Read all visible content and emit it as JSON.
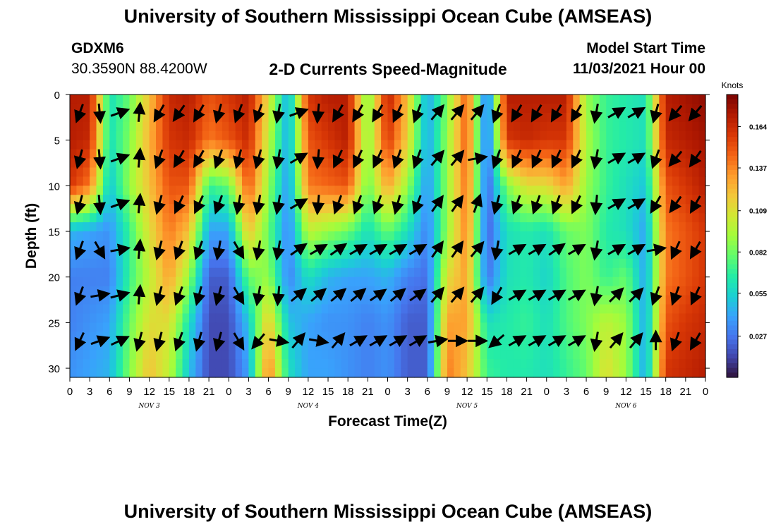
{
  "page": {
    "title": "University of Southern Mississippi Ocean Cube (AMSEAS)",
    "footer_title": "University of Southern Mississippi Ocean Cube (AMSEAS)"
  },
  "header": {
    "station": "GDXM6",
    "coords": "30.3590N  88.4200W",
    "product": "2-D Currents Speed-Magnitude",
    "start_label": "Model Start Time",
    "start_value": "11/03/2021 Hour 00"
  },
  "colors": {
    "palette": [
      "#30123b",
      "#4145ab",
      "#4675ed",
      "#39a2fc",
      "#1bcfd4",
      "#24eca6",
      "#61fc6c",
      "#a4fc3b",
      "#d1e834",
      "#f3c63a",
      "#fe9b2d",
      "#f36315",
      "#d93806",
      "#b11901",
      "#7a0402"
    ],
    "arrow": "#000000"
  },
  "chart_data": {
    "type": "heatmap",
    "title": "2-D Currents Speed-Magnitude",
    "xlabel": "Forecast Time(Z)",
    "ylabel": "Depth (ft)",
    "x_tick_labels": [
      "0",
      "3",
      "6",
      "9",
      "12",
      "15",
      "18",
      "21",
      "0",
      "3",
      "6",
      "9",
      "12",
      "15",
      "18",
      "21",
      "0",
      "3",
      "6",
      "9",
      "12",
      "15",
      "18",
      "21",
      "0",
      "3",
      "6",
      "9",
      "12",
      "15",
      "18",
      "21",
      "0"
    ],
    "x_hours": [
      0,
      96
    ],
    "day_labels": [
      {
        "label": "NOV 3",
        "hour": 12
      },
      {
        "label": "NOV 4",
        "hour": 36
      },
      {
        "label": "NOV 5",
        "hour": 60
      },
      {
        "label": "NOV 6",
        "hour": 84
      }
    ],
    "y_ticks": [
      0,
      5,
      10,
      15,
      20,
      25,
      30
    ],
    "y_range_ft": [
      0,
      31
    ],
    "colorbar": {
      "label": "Knots",
      "ticks": [
        "0.164",
        "0.137",
        "0.109",
        "0.082",
        "0.055",
        "0.027"
      ],
      "tick_values": [
        0.164,
        0.137,
        0.109,
        0.082,
        0.055,
        0.027
      ],
      "range": [
        0.0,
        0.185
      ]
    },
    "speed_grid": {
      "hours": [
        0,
        3,
        6,
        9,
        12,
        15,
        18,
        21,
        24,
        27,
        30,
        33,
        36,
        39,
        42,
        45,
        48,
        51,
        54,
        57,
        60,
        63,
        66,
        69,
        72,
        75,
        78,
        81,
        84,
        87,
        90,
        93,
        96
      ],
      "depths_ft": [
        0,
        5,
        10,
        15,
        20,
        25,
        30
      ],
      "rows": [
        [
          0.17,
          0.17,
          0.06,
          0.08,
          0.12,
          0.165,
          0.17,
          0.15,
          0.16,
          0.17,
          0.11,
          0.04,
          0.16,
          0.17,
          0.17,
          0.08,
          0.17,
          0.12,
          0.04,
          0.085,
          0.15,
          0.02,
          0.17,
          0.17,
          0.17,
          0.17,
          0.09,
          0.07,
          0.065,
          0.06,
          0.17,
          0.175,
          0.18
        ],
        [
          0.17,
          0.165,
          0.06,
          0.085,
          0.125,
          0.16,
          0.165,
          0.14,
          0.15,
          0.165,
          0.1,
          0.04,
          0.15,
          0.16,
          0.17,
          0.085,
          0.16,
          0.115,
          0.04,
          0.09,
          0.15,
          0.02,
          0.16,
          0.165,
          0.16,
          0.16,
          0.095,
          0.07,
          0.065,
          0.06,
          0.165,
          0.17,
          0.175
        ],
        [
          0.16,
          0.14,
          0.05,
          0.09,
          0.12,
          0.15,
          0.15,
          0.07,
          0.08,
          0.15,
          0.09,
          0.035,
          0.14,
          0.145,
          0.15,
          0.08,
          0.13,
          0.09,
          0.035,
          0.09,
          0.145,
          0.02,
          0.085,
          0.11,
          0.11,
          0.13,
          0.09,
          0.07,
          0.06,
          0.05,
          0.15,
          0.16,
          0.17
        ],
        [
          0.045,
          0.04,
          0.035,
          0.07,
          0.11,
          0.14,
          0.12,
          0.04,
          0.04,
          0.12,
          0.08,
          0.03,
          0.1,
          0.09,
          0.08,
          0.06,
          0.08,
          0.06,
          0.03,
          0.09,
          0.14,
          0.02,
          0.06,
          0.065,
          0.06,
          0.08,
          0.085,
          0.065,
          0.06,
          0.04,
          0.14,
          0.15,
          0.16
        ],
        [
          0.03,
          0.03,
          0.03,
          0.07,
          0.1,
          0.13,
          0.09,
          0.02,
          0.02,
          0.08,
          0.09,
          0.03,
          0.06,
          0.045,
          0.04,
          0.04,
          0.045,
          0.03,
          0.025,
          0.11,
          0.13,
          0.025,
          0.06,
          0.065,
          0.055,
          0.075,
          0.085,
          0.07,
          0.08,
          0.04,
          0.14,
          0.15,
          0.16
        ],
        [
          0.03,
          0.035,
          0.04,
          0.08,
          0.11,
          0.11,
          0.06,
          0.015,
          0.015,
          0.05,
          0.12,
          0.05,
          0.04,
          0.035,
          0.035,
          0.03,
          0.035,
          0.02,
          0.02,
          0.13,
          0.13,
          0.06,
          0.065,
          0.07,
          0.06,
          0.075,
          0.085,
          0.1,
          0.09,
          0.04,
          0.15,
          0.16,
          0.165
        ],
        [
          0.035,
          0.04,
          0.045,
          0.085,
          0.12,
          0.1,
          0.05,
          0.015,
          0.015,
          0.04,
          0.14,
          0.06,
          0.04,
          0.04,
          0.035,
          0.03,
          0.035,
          0.02,
          0.02,
          0.14,
          0.12,
          0.07,
          0.065,
          0.065,
          0.06,
          0.07,
          0.08,
          0.11,
          0.09,
          0.04,
          0.16,
          0.165,
          0.17
        ]
      ]
    },
    "vectors": {
      "note": "arrow direction in compass degrees (0 = toward surface/north, 90 = east/right) per hour and depth",
      "hours": [
        1.5,
        4.5,
        7.5,
        10.5,
        13.5,
        16.5,
        19.5,
        22.5,
        25.5,
        28.5,
        31.5,
        34.5,
        37.5,
        40.5,
        43.5,
        46.5,
        49.5,
        52.5,
        55.5,
        58.5,
        61.5,
        64.5,
        67.5,
        70.5,
        73.5,
        76.5,
        79.5,
        82.5,
        85.5,
        88.5,
        91.5,
        94.5
      ],
      "depths_ft": [
        2,
        7,
        12,
        17,
        22,
        27
      ],
      "angles": [
        [
          200,
          175,
          70,
          5,
          210,
          215,
          210,
          195,
          200,
          200,
          190,
          70,
          185,
          210,
          210,
          210,
          205,
          200,
          40,
          40,
          40,
          200,
          210,
          210,
          210,
          210,
          190,
          60,
          60,
          195,
          220,
          220
        ],
        [
          195,
          175,
          70,
          5,
          200,
          210,
          210,
          200,
          195,
          195,
          190,
          60,
          185,
          205,
          205,
          205,
          200,
          200,
          40,
          40,
          80,
          200,
          205,
          205,
          205,
          205,
          190,
          60,
          60,
          200,
          220,
          215
        ],
        [
          195,
          175,
          70,
          5,
          195,
          205,
          205,
          200,
          190,
          190,
          190,
          60,
          185,
          200,
          200,
          200,
          195,
          200,
          35,
          35,
          20,
          195,
          200,
          200,
          200,
          205,
          185,
          60,
          60,
          210,
          215,
          210
        ],
        [
          200,
          150,
          80,
          5,
          195,
          200,
          200,
          190,
          150,
          190,
          190,
          55,
          60,
          55,
          60,
          60,
          60,
          60,
          35,
          35,
          40,
          190,
          60,
          60,
          55,
          60,
          190,
          60,
          60,
          80,
          205,
          210
        ],
        [
          200,
          80,
          75,
          5,
          195,
          200,
          195,
          195,
          150,
          190,
          185,
          50,
          50,
          50,
          50,
          55,
          50,
          55,
          40,
          40,
          40,
          210,
          60,
          60,
          60,
          60,
          190,
          45,
          45,
          200,
          200,
          205
        ],
        [
          205,
          70,
          65,
          195,
          195,
          200,
          195,
          195,
          150,
          220,
          100,
          40,
          100,
          40,
          60,
          60,
          60,
          60,
          80,
          90,
          90,
          230,
          60,
          60,
          60,
          60,
          190,
          40,
          40,
          0,
          200,
          210
        ]
      ]
    }
  }
}
